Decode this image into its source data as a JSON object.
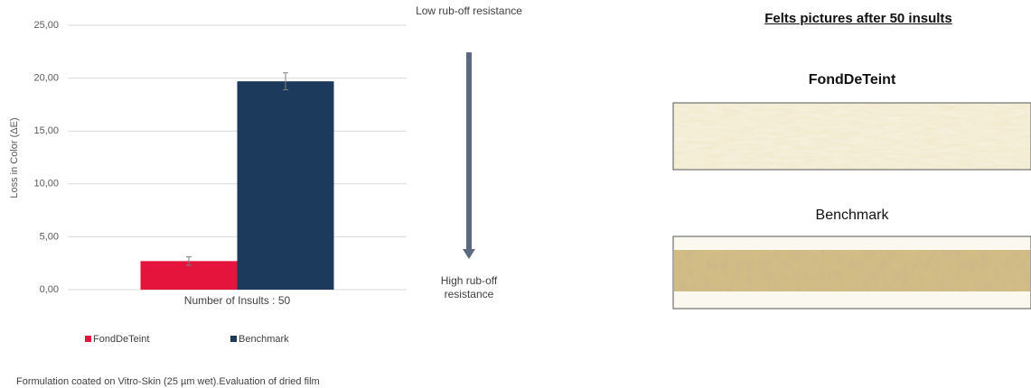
{
  "chart_data": {
    "type": "bar",
    "ylabel": "Loss in Color (ΔE)",
    "categories": [
      "Number of Insults : 50"
    ],
    "series": [
      {
        "name": "FondDeTeint",
        "color": "#e4143c",
        "values": [
          2.7
        ],
        "errors": [
          0.4
        ]
      },
      {
        "name": "Benchmark",
        "color": "#1b3a5c",
        "values": [
          19.7
        ],
        "errors": [
          0.8
        ]
      }
    ],
    "ylim": [
      0,
      25
    ],
    "yticks": [
      {
        "value": 0,
        "label": "0,00"
      },
      {
        "value": 5,
        "label": "5,00"
      },
      {
        "value": 10,
        "label": "10,00"
      },
      {
        "value": 15,
        "label": "15,00"
      },
      {
        "value": 20,
        "label": "20,00"
      },
      {
        "value": 25,
        "label": "25,00"
      }
    ],
    "grid": true,
    "legend": "bottom",
    "annotations": {
      "top": "Low rub-off resistance",
      "bottom": "High rub-off resistance"
    },
    "footnote": "Formulation coated on Vitro-Skin (25 µm wet).Evaluation of dried film"
  },
  "felts": {
    "title": "Felts pictures after 50 insults",
    "items": [
      {
        "label": "FondDeTeint"
      },
      {
        "label": "Benchmark"
      }
    ]
  }
}
